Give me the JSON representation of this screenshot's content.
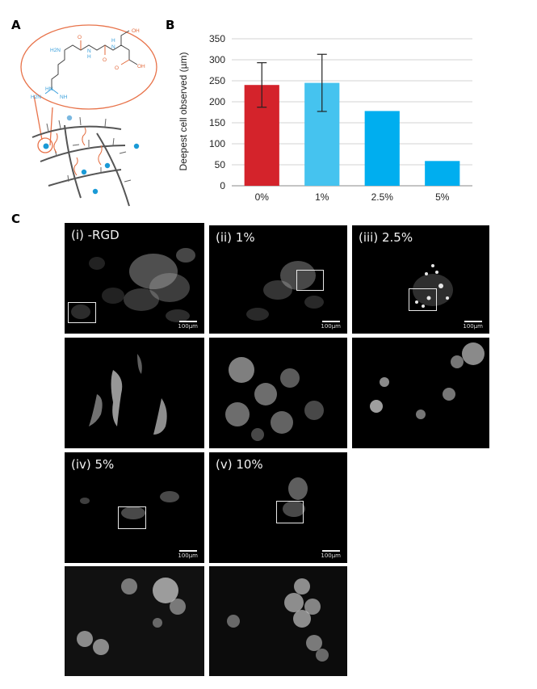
{
  "panels": {
    "a": {
      "letter": "A"
    },
    "b": {
      "letter": "B"
    },
    "c": {
      "letter": "C"
    }
  },
  "molecule": {
    "labels": [
      "H2N",
      "H",
      "N",
      "N",
      "H",
      "O",
      "O",
      "OH",
      "O",
      "OH",
      "HN",
      "H2N",
      "NH"
    ],
    "colors": {
      "amine": "#3aa0dc",
      "carbonyl": "#e36b3d",
      "bond": "#444444",
      "magnifier": "#e8734a"
    }
  },
  "chart_data": {
    "type": "bar",
    "categories": [
      "0%",
      "1%",
      "2.5%",
      "5%"
    ],
    "values": [
      240,
      245,
      178,
      59
    ],
    "error": [
      53,
      68,
      null,
      null
    ],
    "colors": [
      "#d4232b",
      "#45c3ef",
      "#00aeef",
      "#00aeef"
    ],
    "ylabel": "Deepest cell observed (µm)",
    "yticks": [
      0,
      50,
      100,
      150,
      200,
      250,
      300,
      350
    ],
    "ylim": [
      0,
      350
    ],
    "grid": true
  },
  "micrographs": [
    {
      "label": "(i) -RGD",
      "scale": "100µm"
    },
    {
      "label": "(ii) 1%",
      "scale": "100µm"
    },
    {
      "label": "(iii) 2.5%",
      "scale": "100µm"
    },
    {
      "label": "(iv) 5%",
      "scale": "100µm"
    },
    {
      "label": "(v) 10%",
      "scale": "100µm"
    }
  ]
}
